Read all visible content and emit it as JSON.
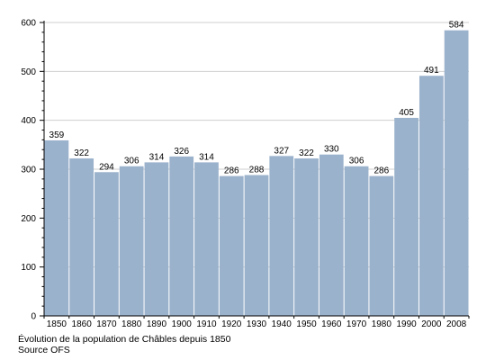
{
  "chart_data": {
    "type": "bar",
    "categories": [
      "1850",
      "1860",
      "1870",
      "1880",
      "1890",
      "1900",
      "1910",
      "1920",
      "1930",
      "1940",
      "1950",
      "1960",
      "1970",
      "1980",
      "1990",
      "2000",
      "2008"
    ],
    "values": [
      359,
      322,
      294,
      306,
      314,
      326,
      314,
      286,
      288,
      327,
      322,
      330,
      306,
      286,
      405,
      491,
      584
    ],
    "data_labels": [
      "359",
      "322",
      "294",
      "306",
      "314",
      "326",
      "314",
      "286",
      "288",
      "327",
      "322",
      "330",
      "306",
      "286",
      "405",
      "491",
      "584"
    ],
    "ylim": [
      0,
      600
    ],
    "y_ticks": [
      0,
      100,
      200,
      300,
      400,
      500,
      600
    ],
    "y_tick_labels": [
      "0",
      "100",
      "200",
      "300",
      "400",
      "500",
      "600"
    ],
    "y_minor_step": 20,
    "grid": true,
    "bar_color": "#9bb2cc",
    "grid_color": "#cfcfcf"
  },
  "captions": {
    "line1": "Évolution de la population de Châbles depuis 1850",
    "line2": "Source OFS"
  }
}
